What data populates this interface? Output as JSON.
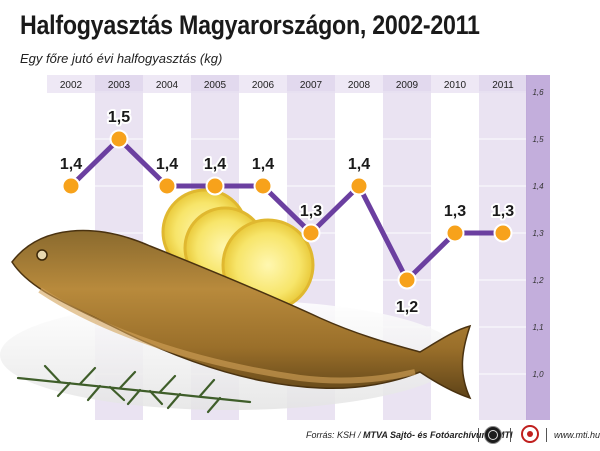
{
  "title": "Halfogyasztás Magyarországon, 2002-2011",
  "subtitle": "Egy főre jutó évi halfogyasztás (kg)",
  "footer": {
    "source_prefix": "Forrás: KSH / ",
    "source_main": "MTVA Sajtó- és Fotóarchívum / MTI",
    "url": "www.mti.hu"
  },
  "colors": {
    "line": "#6b3fa0",
    "marker": "#f7a21b",
    "band": "#d9cce8",
    "accent_band": "#b9a0d6"
  },
  "chart_data": {
    "type": "line",
    "title": "Halfogyasztás Magyarországon, 2002-2011",
    "subtitle": "Egy főre jutó évi halfogyasztás (kg)",
    "categories": [
      "2002",
      "2003",
      "2004",
      "2005",
      "2006",
      "2007",
      "2008",
      "2009",
      "2010",
      "2011"
    ],
    "values": [
      1.4,
      1.5,
      1.4,
      1.4,
      1.4,
      1.3,
      1.4,
      1.2,
      1.3,
      1.3
    ],
    "value_labels": [
      "1,4",
      "1,5",
      "1,4",
      "1,4",
      "1,4",
      "1,3",
      "1,4",
      "1,2",
      "1,3",
      "1,3"
    ],
    "label_position": [
      "above",
      "above",
      "above",
      "above",
      "above",
      "above",
      "above",
      "below",
      "above",
      "above"
    ],
    "y_ticks": [
      "1,6",
      "1,5",
      "1,4",
      "1,3",
      "1,2",
      "1,1",
      "1,0"
    ],
    "y_tick_values": [
      1.6,
      1.5,
      1.4,
      1.3,
      1.2,
      1.1,
      1.0
    ],
    "ylim": [
      1.0,
      1.6
    ],
    "grid": true,
    "legend": "none"
  }
}
